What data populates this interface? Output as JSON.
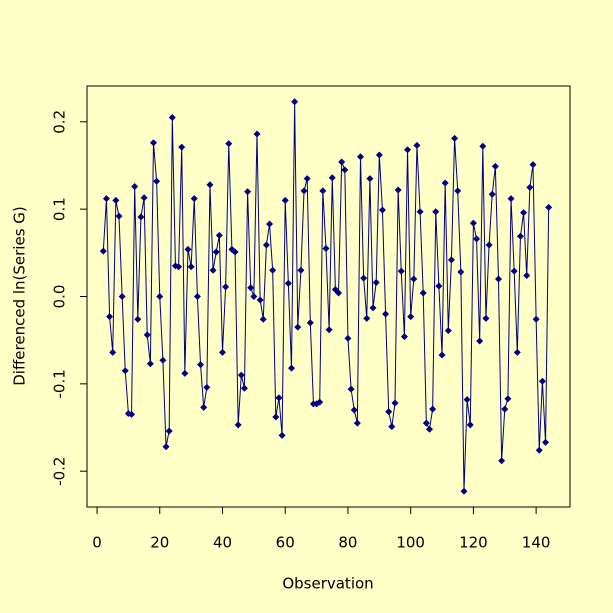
{
  "chart_data": {
    "type": "line",
    "x_label": "Observation",
    "y_label": "Differenced ln(Series G)",
    "x": [
      2,
      3,
      4,
      5,
      6,
      7,
      8,
      9,
      10,
      11,
      12,
      13,
      14,
      15,
      16,
      17,
      18,
      19,
      20,
      21,
      22,
      23,
      24,
      25,
      26,
      27,
      28,
      29,
      30,
      31,
      32,
      33,
      34,
      35,
      36,
      37,
      38,
      39,
      40,
      41,
      42,
      43,
      44,
      45,
      46,
      47,
      48,
      49,
      50,
      51,
      52,
      53,
      54,
      55,
      56,
      57,
      58,
      59,
      60,
      61,
      62,
      63,
      64,
      65,
      66,
      67,
      68,
      69,
      70,
      71,
      72,
      73,
      74,
      75,
      76,
      77,
      78,
      79,
      80,
      81,
      82,
      83,
      84,
      85,
      86,
      87,
      88,
      89,
      90,
      91,
      92,
      93,
      94,
      95,
      96,
      97,
      98,
      99,
      100,
      101,
      102,
      103,
      104,
      105,
      106,
      107,
      108,
      109,
      110,
      111,
      112,
      113,
      114,
      115,
      116,
      117,
      118,
      119,
      120,
      121,
      122,
      123,
      124,
      125,
      126,
      127,
      128,
      129,
      130,
      131,
      132,
      133,
      134,
      135,
      136,
      137,
      138,
      139,
      140,
      141,
      142,
      143,
      144
    ],
    "series": [
      {
        "color": "#000080",
        "values": [
          0.052,
          0.112,
          -0.023,
          -0.064,
          0.11,
          0.092,
          0,
          -0.085,
          -0.134,
          -0.135,
          0.126,
          -0.026,
          0.091,
          0.113,
          -0.044,
          -0.077,
          0.176,
          0.132,
          0,
          -0.073,
          -0.172,
          -0.154,
          0.205,
          0.035,
          0.034,
          0.171,
          -0.088,
          0.054,
          0.034,
          0.112,
          0,
          -0.078,
          -0.127,
          -0.104,
          0.128,
          0.03,
          0.051,
          0.07,
          -0.064,
          0.011,
          0.175,
          0.054,
          0.051,
          -0.147,
          -0.09,
          -0.105,
          0.12,
          0.01,
          0,
          0.186,
          -0.004,
          -0.026,
          0.059,
          0.083,
          0.03,
          -0.138,
          -0.116,
          -0.159,
          0.11,
          0.015,
          -0.082,
          0.223,
          -0.035,
          0.03,
          0.121,
          0.135,
          -0.03,
          -0.123,
          -0.123,
          -0.121,
          0.121,
          0.055,
          -0.038,
          0.136,
          0.008,
          0.004,
          0.154,
          0.145,
          -0.048,
          -0.106,
          -0.13,
          -0.145,
          0.16,
          0.021,
          -0.025,
          0.135,
          -0.013,
          0.016,
          0.162,
          0.099,
          -0.02,
          -0.132,
          -0.149,
          -0.122,
          0.122,
          0.029,
          -0.046,
          0.168,
          -0.023,
          0.02,
          0.173,
          0.097,
          0.004,
          -0.145,
          -0.152,
          -0.129,
          0.097,
          0.012,
          -0.067,
          0.13,
          -0.039,
          0.042,
          0.181,
          0.121,
          0.028,
          -0.223,
          -0.118,
          -0.147,
          0.084,
          0.066,
          -0.051,
          0.172,
          -0.025,
          0.059,
          0.117,
          0.149,
          0.02,
          -0.188,
          -0.129,
          -0.117,
          0.112,
          0.029,
          -0.064,
          0.069,
          0.096,
          0.024,
          0.125,
          0.151,
          -0.026,
          -0.176,
          -0.097,
          -0.167,
          0.102
        ]
      }
    ],
    "xlim": [
      -3.2,
      150.8
    ],
    "xticks": [
      0,
      20,
      40,
      60,
      80,
      100,
      120,
      140
    ],
    "ylim": [
      -0.241,
      0.241
    ],
    "yticks": [
      -0.2,
      -0.1,
      {
        "value": 0,
        "label": "0.0"
      },
      0.1,
      0.2
    ]
  }
}
